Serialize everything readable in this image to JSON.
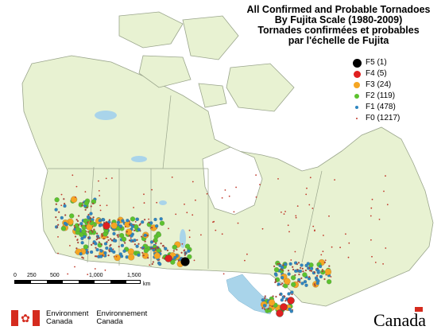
{
  "title": {
    "line1": "All Confirmed and Probable Tornadoes",
    "line2": "By Fujita Scale (1980-2009)",
    "line3": "Tornades confirmées et probables",
    "line4": "par l'échelle de Fujita"
  },
  "legend": [
    {
      "label": "F5 (1)",
      "color": "#000000",
      "size": 11
    },
    {
      "label": "F4 (5)",
      "color": "#e02020",
      "size": 9
    },
    {
      "label": "F3 (24)",
      "color": "#f5a623",
      "size": 8
    },
    {
      "label": "F2 (119)",
      "color": "#5cc22e",
      "size": 6
    },
    {
      "label": "F1 (478)",
      "color": "#2e86c1",
      "size": 4
    },
    {
      "label": "F0 (1217)",
      "color": "#c0392b",
      "size": 2
    }
  ],
  "scale": {
    "ticks": [
      "0",
      "250",
      "500",
      "1,000",
      "1,500"
    ],
    "unit": "km"
  },
  "footer": {
    "org_en_1": "Environment",
    "org_en_2": "Canada",
    "org_fr_1": "Environnement",
    "org_fr_2": "Canada",
    "wordmark": "Canada"
  },
  "colors": {
    "land": "#e8f2d2",
    "water": "#a9d4ea",
    "border": "#9aa58c",
    "outside": "#ffffff"
  }
}
